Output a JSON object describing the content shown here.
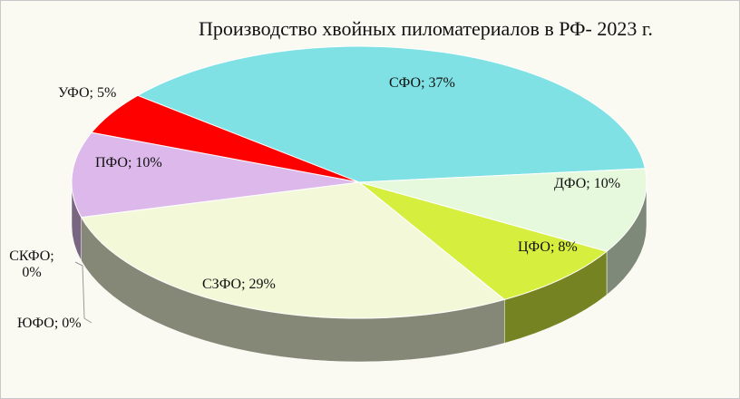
{
  "chart_data": {
    "type": "pie3d",
    "title": "Производство хвойных пиломатериалов в РФ- 2023 г.",
    "categories": [
      "СФО",
      "ДФО",
      "ЦФО",
      "СЗФО",
      "ЮФО",
      "СКФО",
      "ПФО",
      "УФО"
    ],
    "values": [
      37,
      10,
      8,
      29,
      0,
      0,
      10,
      5
    ],
    "value_labels": [
      "СФО; 37%",
      "ДФО; 10%",
      "ЦФО; 8%",
      "СЗФО; 29%",
      "ЮФО; 0%",
      "СКФО; 0%",
      "ПФО; 10%",
      "УФО; 5%"
    ],
    "colors": [
      "#7fe1e4",
      "#e6f9dc",
      "#d6ee3e",
      "#f3f8d8",
      "#f0a040",
      "#e8c870",
      "#dcb9ea",
      "#ff0000"
    ]
  }
}
